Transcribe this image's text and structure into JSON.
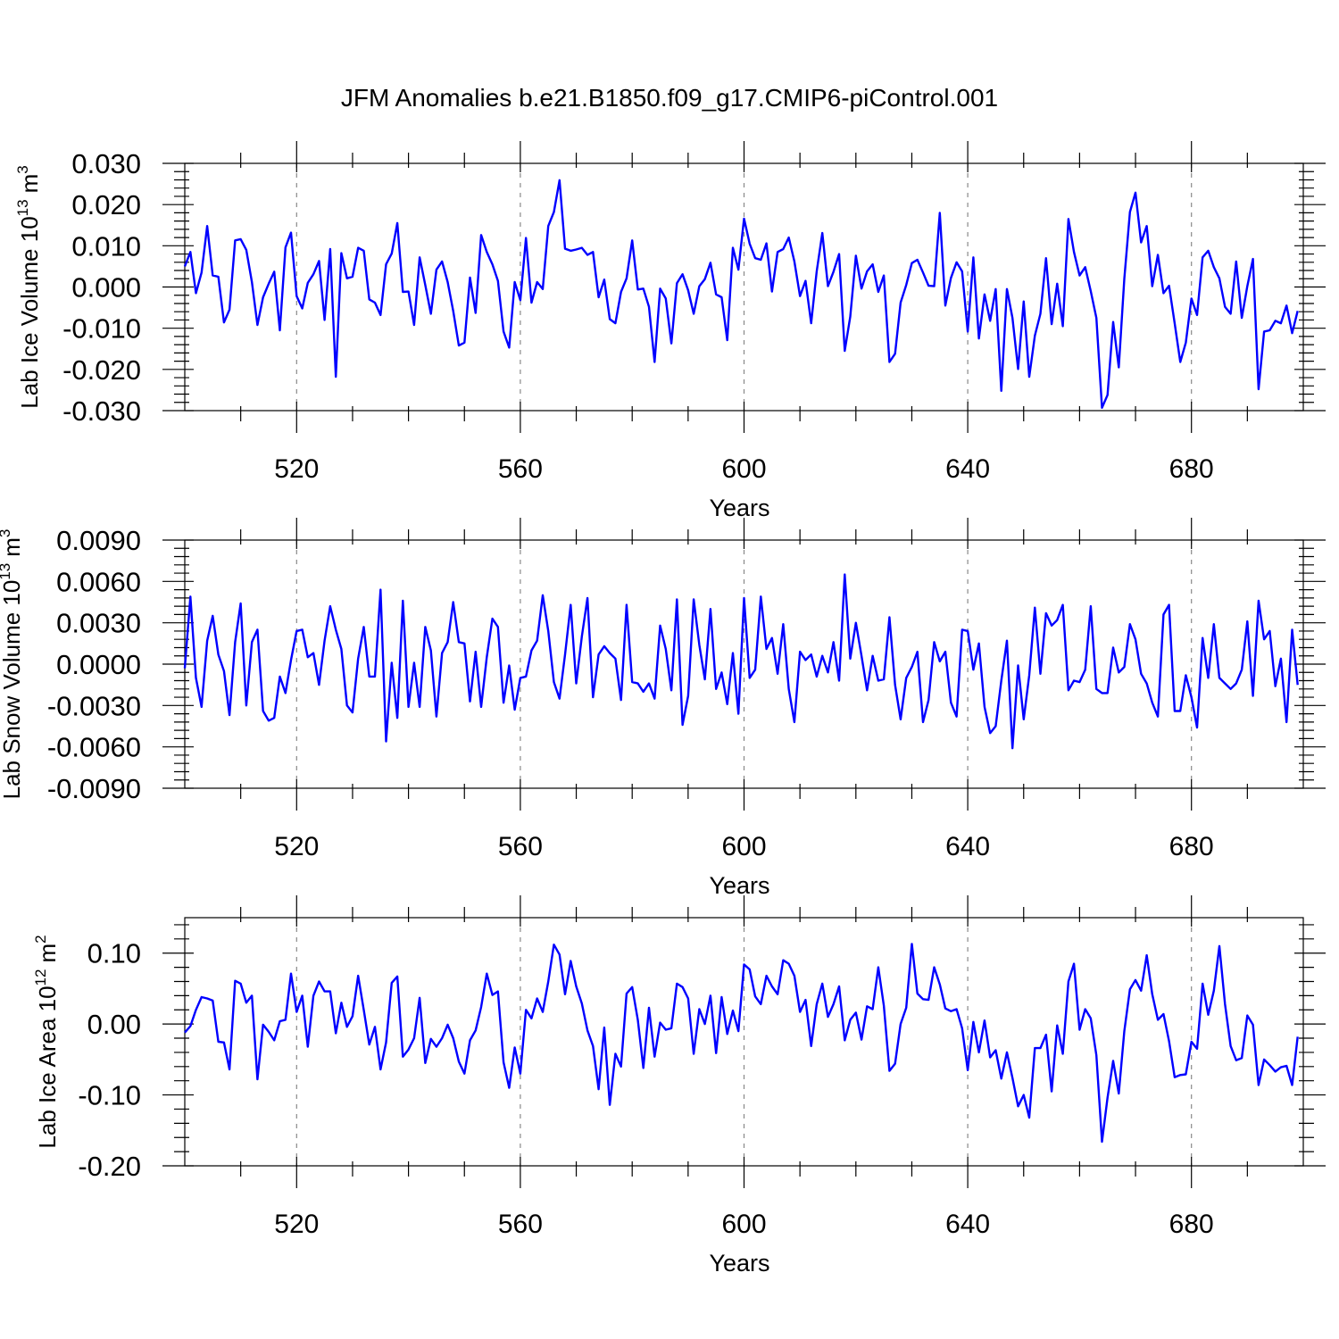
{
  "title": "JFM Anomalies b.e21.B1850.f09_g17.CMIP6-piControl.001",
  "chart_data": [
    {
      "type": "line",
      "name": "ice-volume",
      "ylabel": "Lab Ice Volume 10",
      "ylabel_exp": "13",
      "ylabel_unit": "m",
      "ylabel_unit_exp": "3",
      "xlabel": "Years",
      "xlim": [
        500,
        700
      ],
      "ylim": [
        -0.03,
        0.03
      ],
      "x_ticks": [
        520,
        560,
        600,
        640,
        680
      ],
      "x_tick_labels": [
        "520",
        "560",
        "600",
        "640",
        "680"
      ],
      "y_ticks": [
        -0.03,
        -0.02,
        -0.01,
        0.0,
        0.01,
        0.02,
        0.03
      ],
      "y_tick_labels": [
        "-0.030",
        "-0.020",
        "-0.010",
        "0.000",
        "0.010",
        "0.020",
        "0.030"
      ],
      "color": "#0000ff",
      "x_start": 500,
      "values": [
        0.005,
        0.0085,
        -0.0015,
        0.0035,
        0.0148,
        0.0028,
        0.0025,
        -0.0086,
        -0.0055,
        0.0113,
        0.0116,
        0.009,
        0.0012,
        -0.0092,
        -0.0025,
        0.0008,
        0.0037,
        -0.0105,
        0.0096,
        0.0132,
        -0.0022,
        -0.0052,
        0.001,
        0.0031,
        0.0063,
        -0.008,
        0.0092,
        -0.0218,
        0.0082,
        0.0021,
        0.0025,
        0.0095,
        0.0088,
        -0.003,
        -0.0038,
        -0.0068,
        0.0055,
        0.0081,
        0.0155,
        -0.0012,
        -0.0011,
        -0.0092,
        0.0072,
        0.0005,
        -0.0065,
        0.0042,
        0.0062,
        0.0012,
        -0.0058,
        -0.0142,
        -0.0135,
        0.0023,
        -0.0063,
        0.0126,
        0.0085,
        0.0055,
        0.0015,
        -0.0108,
        -0.0147,
        0.0012,
        -0.0032,
        0.0119,
        -0.0038,
        0.0012,
        -0.0005,
        0.0148,
        0.0182,
        0.0259,
        0.0093,
        0.0088,
        0.0091,
        0.0095,
        0.0078,
        0.0085,
        -0.0025,
        0.0018,
        -0.0078,
        -0.0088,
        -0.0012,
        0.0021,
        0.0113,
        -0.0006,
        -0.0004,
        -0.0048,
        -0.0182,
        -0.0004,
        -0.0028,
        -0.0137,
        0.0009,
        0.0031,
        -0.0008,
        -0.0065,
        0.0002,
        0.0019,
        0.0059,
        -0.0018,
        -0.0025,
        -0.0129,
        0.0095,
        0.0042,
        0.0166,
        0.0105,
        0.007,
        0.0066,
        0.0106,
        -0.0011,
        0.0085,
        0.0092,
        0.012,
        0.0062,
        -0.0022,
        0.0015,
        -0.0088,
        0.0038,
        0.0131,
        0.0002,
        0.0037,
        0.008,
        -0.0155,
        -0.0072,
        0.0076,
        -0.0004,
        0.0038,
        0.0055,
        -0.0012,
        0.0028,
        -0.0182,
        -0.0162,
        -0.0038,
        0.0005,
        0.0058,
        0.0066,
        0.0035,
        0.0003,
        0.0002,
        0.018,
        -0.0045,
        0.0022,
        0.006,
        0.0038,
        -0.0108,
        0.0072,
        -0.0125,
        -0.0018,
        -0.0082,
        -0.0005,
        -0.0252,
        -0.0005,
        -0.0075,
        -0.0199,
        -0.0035,
        -0.0218,
        -0.0118,
        -0.0065,
        0.007,
        -0.009,
        0.0008,
        -0.0095,
        0.0165,
        0.0085,
        0.0028,
        0.0048,
        -0.001,
        -0.0075,
        -0.0293,
        -0.0262,
        -0.0085,
        -0.0195,
        0.002,
        0.0182,
        0.0229,
        0.0108,
        0.0148,
        0.0002,
        0.0078,
        -0.0015,
        0.0003,
        -0.0088,
        -0.0182,
        -0.0135,
        -0.0028,
        -0.0068,
        0.0072,
        0.0088,
        0.0048,
        0.0021,
        -0.0048,
        -0.0065,
        0.0062,
        -0.0075,
        0.0002,
        0.0068,
        -0.0248,
        -0.0108,
        -0.0105,
        -0.0082,
        -0.0088,
        -0.0045,
        -0.0112,
        -0.0058
      ]
    },
    {
      "type": "line",
      "name": "snow-volume",
      "ylabel": "Lab Snow Volume 10",
      "ylabel_exp": "13",
      "ylabel_unit": "m",
      "ylabel_unit_exp": "3",
      "xlabel": "Years",
      "xlim": [
        500,
        700
      ],
      "ylim": [
        -0.009,
        0.009
      ],
      "x_ticks": [
        520,
        560,
        600,
        640,
        680
      ],
      "x_tick_labels": [
        "520",
        "560",
        "600",
        "640",
        "680"
      ],
      "y_ticks": [
        -0.009,
        -0.006,
        -0.003,
        0.0,
        0.003,
        0.006,
        0.009
      ],
      "y_tick_labels": [
        "-0.0090",
        "-0.0060",
        "-0.0030",
        "0.0000",
        "0.0030",
        "0.0060",
        "0.0090"
      ],
      "color": "#0000ff",
      "x_start": 500,
      "values": [
        -0.0003,
        0.0049,
        -0.001,
        -0.0031,
        0.0017,
        0.0035,
        0.0007,
        -0.0005,
        -0.0037,
        0.0016,
        0.0044,
        -0.003,
        0.0016,
        0.0025,
        -0.0034,
        -0.0041,
        -0.0039,
        -0.0009,
        -0.0021,
        0.0003,
        0.0024,
        0.0025,
        0.0005,
        0.0008,
        -0.0015,
        0.0017,
        0.0042,
        0.0025,
        0.0011,
        -0.003,
        -0.0035,
        0.0004,
        0.0027,
        -0.0009,
        -0.0009,
        0.0054,
        -0.0056,
        0.0001,
        -0.0039,
        0.0046,
        -0.0031,
        0.0001,
        -0.0031,
        0.0027,
        0.001,
        -0.0038,
        0.0008,
        0.0016,
        0.0045,
        0.0016,
        0.0015,
        -0.0027,
        0.0009,
        -0.0031,
        0.0005,
        0.0033,
        0.0027,
        -0.0028,
        -0.0001,
        -0.0033,
        -0.001,
        -0.0009,
        0.001,
        0.0017,
        0.005,
        0.0024,
        -0.0013,
        -0.0025,
        0.0007,
        0.0043,
        -0.0014,
        0.002,
        0.0048,
        -0.0024,
        0.0007,
        0.0013,
        0.0008,
        0.0004,
        -0.0026,
        0.0043,
        -0.0013,
        -0.0014,
        -0.002,
        -0.0014,
        -0.0025,
        0.0028,
        0.0011,
        -0.0019,
        0.0047,
        -0.0044,
        -0.0023,
        0.0047,
        0.0014,
        -0.0011,
        0.004,
        -0.0018,
        -0.0006,
        -0.0029,
        0.0008,
        -0.0036,
        0.0048,
        -0.001,
        -0.0004,
        0.0049,
        0.0011,
        0.0019,
        -0.0007,
        0.0029,
        -0.0018,
        -0.0042,
        0.0009,
        0.0003,
        0.0007,
        -0.0009,
        0.0006,
        -0.0006,
        0.0016,
        -0.0012,
        0.0065,
        0.0004,
        0.003,
        0.0006,
        -0.0019,
        0.0006,
        -0.0012,
        -0.0011,
        0.0034,
        -0.0015,
        -0.004,
        -0.001,
        -0.0002,
        0.0009,
        -0.0042,
        -0.0026,
        0.0016,
        0.0002,
        0.0009,
        -0.0028,
        -0.0038,
        0.0025,
        0.0024,
        -0.0004,
        0.0015,
        -0.0031,
        -0.005,
        -0.0045,
        -0.0012,
        0.0017,
        -0.0061,
        -0.0001,
        -0.004,
        -0.0008,
        0.0041,
        -0.0007,
        0.0037,
        0.0028,
        0.0032,
        0.0043,
        -0.0019,
        -0.0012,
        -0.0013,
        -0.0004,
        0.0042,
        -0.0018,
        -0.0021,
        -0.0021,
        0.0012,
        -0.0006,
        -0.0002,
        0.0029,
        0.0018,
        -0.0007,
        -0.0014,
        -0.0028,
        -0.0038,
        0.0036,
        0.0043,
        -0.0034,
        -0.0034,
        -0.0008,
        -0.0024,
        -0.0046,
        0.0019,
        -0.001,
        0.0029,
        -0.001,
        -0.0014,
        -0.0018,
        -0.0014,
        -0.0004,
        0.0031,
        -0.0023,
        0.0046,
        0.0018,
        0.0024,
        -0.0016,
        0.0004,
        -0.0042,
        0.0025,
        -0.0015
      ]
    },
    {
      "type": "line",
      "name": "ice-area",
      "ylabel": "Lab Ice Area 10",
      "ylabel_exp": "12",
      "ylabel_unit": "m",
      "ylabel_unit_exp": "2",
      "xlabel": "Years",
      "xlim": [
        500,
        700
      ],
      "ylim": [
        -0.2,
        0.15
      ],
      "x_ticks": [
        520,
        560,
        600,
        640,
        680
      ],
      "x_tick_labels": [
        "520",
        "560",
        "600",
        "640",
        "680"
      ],
      "y_ticks": [
        -0.2,
        -0.1,
        0.0,
        0.1
      ],
      "y_tick_labels": [
        "-0.20",
        "-0.10",
        "0.00",
        "0.10"
      ],
      "color": "#0000ff",
      "x_start": 500,
      "values": [
        -0.012,
        -0.003,
        0.02,
        0.038,
        0.036,
        0.033,
        -0.025,
        -0.026,
        -0.064,
        0.061,
        0.057,
        0.03,
        0.04,
        -0.078,
        -0.001,
        -0.011,
        -0.023,
        0.004,
        0.006,
        0.071,
        0.017,
        0.04,
        -0.032,
        0.04,
        0.06,
        0.046,
        0.046,
        -0.013,
        0.03,
        -0.004,
        0.011,
        0.068,
        0.02,
        -0.029,
        -0.004,
        -0.064,
        -0.026,
        0.058,
        0.067,
        -0.046,
        -0.036,
        -0.02,
        0.037,
        -0.055,
        -0.021,
        -0.032,
        -0.02,
        -0.001,
        -0.02,
        -0.053,
        -0.07,
        -0.023,
        -0.009,
        0.024,
        0.071,
        0.041,
        0.046,
        -0.054,
        -0.09,
        -0.033,
        -0.07,
        0.02,
        0.008,
        0.036,
        0.017,
        0.06,
        0.112,
        0.098,
        0.042,
        0.089,
        0.053,
        0.029,
        -0.009,
        -0.031,
        -0.092,
        -0.005,
        -0.114,
        -0.042,
        -0.06,
        0.043,
        0.052,
        0.006,
        -0.062,
        0.023,
        -0.046,
        0.002,
        -0.008,
        -0.006,
        0.057,
        0.052,
        0.036,
        -0.042,
        0.021,
        0.0,
        0.04,
        -0.041,
        0.038,
        -0.014,
        0.019,
        -0.01,
        0.084,
        0.077,
        0.039,
        0.028,
        0.068,
        0.053,
        0.042,
        0.09,
        0.085,
        0.068,
        0.017,
        0.034,
        -0.031,
        0.028,
        0.057,
        0.01,
        0.028,
        0.053,
        -0.023,
        0.006,
        0.016,
        -0.022,
        0.025,
        0.021,
        0.08,
        0.026,
        -0.066,
        -0.056,
        0.0,
        0.023,
        0.113,
        0.043,
        0.035,
        0.034,
        0.08,
        0.056,
        0.022,
        0.018,
        0.021,
        -0.006,
        -0.065,
        0.003,
        -0.04,
        0.005,
        -0.047,
        -0.037,
        -0.077,
        -0.04,
        -0.076,
        -0.116,
        -0.1,
        -0.132,
        -0.034,
        -0.034,
        -0.015,
        -0.095,
        -0.002,
        -0.042,
        0.06,
        0.085,
        -0.008,
        0.021,
        0.008,
        -0.044,
        -0.166,
        -0.104,
        -0.052,
        -0.098,
        -0.01,
        0.049,
        0.062,
        0.047,
        0.097,
        0.042,
        0.006,
        0.014,
        -0.024,
        -0.075,
        -0.072,
        -0.071,
        -0.025,
        -0.035,
        0.057,
        0.013,
        0.047,
        0.11,
        0.028,
        -0.031,
        -0.051,
        -0.048,
        0.012,
        -0.001,
        -0.086,
        -0.05,
        -0.058,
        -0.067,
        -0.061,
        -0.059,
        -0.086,
        -0.018
      ]
    }
  ]
}
